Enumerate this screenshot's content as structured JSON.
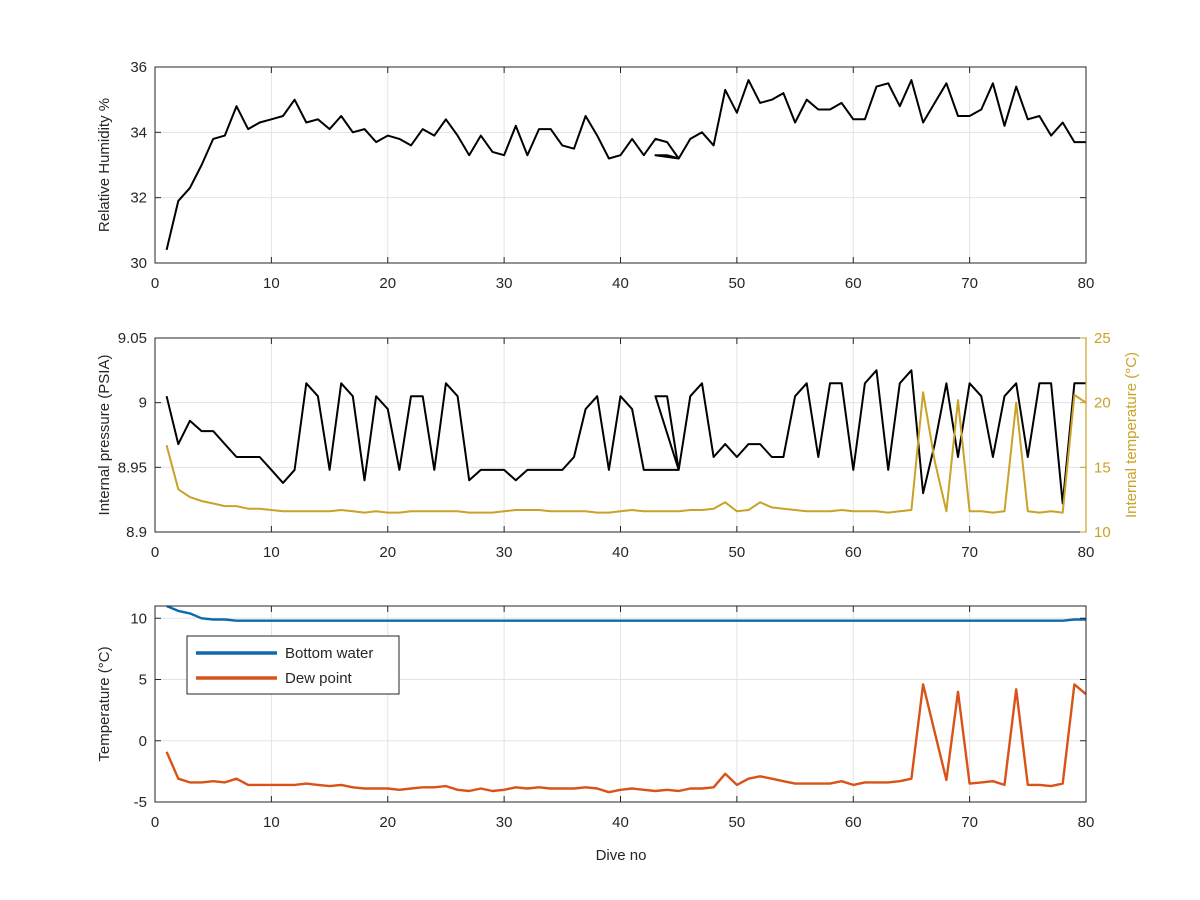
{
  "figure": {
    "xlabel": "Dive no"
  },
  "chart_data": [
    {
      "type": "line",
      "ylabel": "Relative Humidity %",
      "xlim": [
        0,
        80
      ],
      "ylim": [
        30,
        36
      ],
      "xticks": [
        "0",
        "10",
        "20",
        "30",
        "40",
        "50",
        "60",
        "70",
        "80"
      ],
      "yticks": [
        "30",
        "32",
        "34",
        "36"
      ],
      "grid": true,
      "series": [
        {
          "color": "#000000",
          "x": [
            1,
            2,
            3,
            4,
            5,
            6,
            7,
            8,
            9,
            10,
            11,
            12,
            13,
            14,
            15,
            16,
            17,
            18,
            19,
            20,
            21,
            22,
            23,
            24,
            25,
            26,
            27,
            28,
            29,
            30,
            31,
            32,
            33,
            34,
            35,
            36,
            37,
            38,
            39,
            40,
            41,
            42,
            43,
            44,
            45,
            43,
            44,
            45,
            46,
            47,
            48,
            49,
            50,
            51,
            52,
            53,
            54,
            55,
            56,
            57,
            58,
            59,
            60,
            61,
            62,
            63,
            64,
            65,
            66,
            67,
            68,
            69,
            70,
            71,
            72,
            73,
            74,
            75,
            76,
            77,
            78,
            79,
            80
          ],
          "y": [
            30.4,
            31.9,
            32.3,
            33.0,
            33.8,
            33.9,
            34.8,
            34.1,
            34.3,
            34.4,
            34.5,
            35.0,
            34.3,
            34.4,
            34.1,
            34.5,
            34.0,
            34.1,
            33.7,
            33.9,
            33.8,
            33.6,
            34.1,
            33.9,
            34.4,
            33.9,
            33.3,
            33.9,
            33.4,
            33.3,
            34.2,
            33.3,
            34.1,
            34.1,
            33.6,
            33.5,
            34.5,
            33.9,
            33.2,
            33.3,
            33.8,
            33.3,
            33.8,
            33.7,
            33.2,
            33.3,
            33.3,
            33.2,
            33.8,
            34.0,
            33.6,
            35.3,
            34.6,
            35.6,
            34.9,
            35.0,
            35.2,
            34.3,
            35.0,
            34.7,
            34.7,
            34.9,
            34.4,
            34.4,
            35.4,
            35.5,
            34.8,
            35.6,
            34.3,
            34.9,
            35.5,
            34.5,
            34.5,
            34.7,
            35.5,
            34.2,
            35.4,
            34.4,
            34.5,
            33.9,
            34.3,
            33.7,
            33.7
          ]
        }
      ]
    },
    {
      "type": "line",
      "ylabel": "Internal pressure (PSIA)",
      "ylabel_right": "Internal temperature (°C)",
      "xlim": [
        0,
        80
      ],
      "ylim": [
        8.9,
        9.05
      ],
      "ylim_right": [
        10,
        25
      ],
      "xticks": [
        "0",
        "10",
        "20",
        "30",
        "40",
        "50",
        "60",
        "70",
        "80"
      ],
      "yticks": [
        "8.9",
        "8.95",
        "9",
        "9.05"
      ],
      "yticks_right": [
        "10",
        "15",
        "20",
        "25"
      ],
      "grid": true,
      "series": [
        {
          "axis": "left",
          "color": "#000000",
          "x": [
            1,
            2,
            3,
            4,
            5,
            6,
            7,
            8,
            9,
            10,
            11,
            12,
            13,
            14,
            15,
            16,
            17,
            18,
            19,
            20,
            21,
            22,
            23,
            24,
            25,
            26,
            27,
            28,
            29,
            30,
            31,
            32,
            33,
            34,
            35,
            36,
            37,
            38,
            39,
            40,
            41,
            42,
            43,
            44,
            45,
            43,
            44,
            45,
            46,
            47,
            48,
            49,
            50,
            51,
            52,
            53,
            54,
            55,
            56,
            57,
            58,
            59,
            60,
            61,
            62,
            63,
            64,
            65,
            66,
            67,
            68,
            69,
            70,
            71,
            72,
            73,
            74,
            75,
            76,
            77,
            78,
            79,
            80
          ],
          "y": [
            9.005,
            8.968,
            8.986,
            8.978,
            8.978,
            8.968,
            8.958,
            8.958,
            8.958,
            8.948,
            8.938,
            8.948,
            9.015,
            9.005,
            8.948,
            9.015,
            9.005,
            8.94,
            9.005,
            8.995,
            8.948,
            9.005,
            9.005,
            8.948,
            9.015,
            9.005,
            8.94,
            8.948,
            8.948,
            8.948,
            8.94,
            8.948,
            8.948,
            8.948,
            8.948,
            8.958,
            8.995,
            9.005,
            8.948,
            9.005,
            8.995,
            8.948,
            8.948,
            8.948,
            8.948,
            9.005,
            9.005,
            8.948,
            9.005,
            9.015,
            8.958,
            8.968,
            8.958,
            8.968,
            8.968,
            8.958,
            8.958,
            9.005,
            9.015,
            8.958,
            9.015,
            9.015,
            8.948,
            9.015,
            9.025,
            8.948,
            9.015,
            9.025,
            8.93,
            8.968,
            9.015,
            8.958,
            9.015,
            9.005,
            8.958,
            9.005,
            9.015,
            8.958,
            9.015,
            9.015,
            8.922,
            9.015,
            9.015
          ]
        },
        {
          "axis": "right",
          "color": "#c9a227",
          "x": [
            1,
            2,
            3,
            4,
            5,
            6,
            7,
            8,
            9,
            10,
            11,
            12,
            13,
            14,
            15,
            16,
            17,
            18,
            19,
            20,
            21,
            22,
            23,
            24,
            25,
            26,
            27,
            28,
            29,
            30,
            31,
            32,
            33,
            34,
            35,
            36,
            37,
            38,
            39,
            40,
            41,
            42,
            43,
            44,
            45,
            46,
            47,
            48,
            49,
            50,
            51,
            52,
            53,
            54,
            55,
            56,
            57,
            58,
            59,
            60,
            61,
            62,
            63,
            64,
            65,
            66,
            67,
            68,
            69,
            70,
            71,
            72,
            73,
            74,
            75,
            76,
            77,
            78,
            79,
            80
          ],
          "y": [
            16.7,
            13.3,
            12.7,
            12.4,
            12.2,
            12.0,
            12.0,
            11.8,
            11.8,
            11.7,
            11.6,
            11.6,
            11.6,
            11.6,
            11.6,
            11.7,
            11.6,
            11.5,
            11.6,
            11.5,
            11.5,
            11.6,
            11.6,
            11.6,
            11.6,
            11.6,
            11.5,
            11.5,
            11.5,
            11.6,
            11.7,
            11.7,
            11.7,
            11.6,
            11.6,
            11.6,
            11.6,
            11.5,
            11.5,
            11.6,
            11.7,
            11.6,
            11.6,
            11.6,
            11.6,
            11.7,
            11.7,
            11.8,
            12.3,
            11.6,
            11.7,
            12.3,
            11.9,
            11.8,
            11.7,
            11.6,
            11.6,
            11.6,
            11.7,
            11.6,
            11.6,
            11.6,
            11.5,
            11.6,
            11.7,
            20.8,
            15.5,
            11.6,
            20.2,
            11.6,
            11.6,
            11.5,
            11.6,
            20.0,
            11.6,
            11.5,
            11.6,
            11.5,
            20.6,
            20.0
          ]
        }
      ]
    },
    {
      "type": "line",
      "ylabel": "Temperature (°C)",
      "xlabel": "Dive no",
      "xlim": [
        0,
        80
      ],
      "ylim": [
        -5,
        11
      ],
      "xticks": [
        "0",
        "10",
        "20",
        "30",
        "40",
        "50",
        "60",
        "70",
        "80"
      ],
      "yticks": [
        "-5",
        "0",
        "5",
        "10"
      ],
      "grid": true,
      "legend": "top-left",
      "series": [
        {
          "name": "Bottom water",
          "color": "#0f6aab",
          "x": [
            1,
            2,
            3,
            4,
            5,
            6,
            7,
            8,
            9,
            10,
            11,
            12,
            13,
            14,
            15,
            16,
            17,
            18,
            19,
            20,
            21,
            22,
            23,
            24,
            25,
            26,
            27,
            28,
            29,
            30,
            31,
            32,
            33,
            34,
            35,
            36,
            37,
            38,
            39,
            40,
            41,
            42,
            43,
            44,
            45,
            46,
            47,
            48,
            49,
            50,
            51,
            52,
            53,
            54,
            55,
            56,
            57,
            58,
            59,
            60,
            61,
            62,
            63,
            64,
            65,
            66,
            67,
            68,
            69,
            70,
            71,
            72,
            73,
            74,
            75,
            76,
            77,
            78,
            79,
            80
          ],
          "y": [
            11.0,
            10.6,
            10.4,
            10.0,
            9.9,
            9.9,
            9.8,
            9.8,
            9.8,
            9.8,
            9.8,
            9.8,
            9.8,
            9.8,
            9.8,
            9.8,
            9.8,
            9.8,
            9.8,
            9.8,
            9.8,
            9.8,
            9.8,
            9.8,
            9.8,
            9.8,
            9.8,
            9.8,
            9.8,
            9.8,
            9.8,
            9.8,
            9.8,
            9.8,
            9.8,
            9.8,
            9.8,
            9.8,
            9.8,
            9.8,
            9.8,
            9.8,
            9.8,
            9.8,
            9.8,
            9.8,
            9.8,
            9.8,
            9.8,
            9.8,
            9.8,
            9.8,
            9.8,
            9.8,
            9.8,
            9.8,
            9.8,
            9.8,
            9.8,
            9.8,
            9.8,
            9.8,
            9.8,
            9.8,
            9.8,
            9.8,
            9.8,
            9.8,
            9.8,
            9.8,
            9.8,
            9.8,
            9.8,
            9.8,
            9.8,
            9.8,
            9.8,
            9.8,
            9.9,
            9.9
          ]
        },
        {
          "name": "Dew point",
          "color": "#d95319",
          "x": [
            1,
            2,
            3,
            4,
            5,
            6,
            7,
            8,
            9,
            10,
            11,
            12,
            13,
            14,
            15,
            16,
            17,
            18,
            19,
            20,
            21,
            22,
            23,
            24,
            25,
            26,
            27,
            28,
            29,
            30,
            31,
            32,
            33,
            34,
            35,
            36,
            37,
            38,
            39,
            40,
            41,
            42,
            43,
            44,
            45,
            46,
            47,
            48,
            49,
            50,
            51,
            52,
            53,
            54,
            55,
            56,
            57,
            58,
            59,
            60,
            61,
            62,
            63,
            64,
            65,
            66,
            67,
            68,
            69,
            70,
            71,
            72,
            73,
            74,
            75,
            76,
            77,
            78,
            79,
            80
          ],
          "y": [
            -0.9,
            -3.1,
            -3.4,
            -3.4,
            -3.3,
            -3.4,
            -3.1,
            -3.6,
            -3.6,
            -3.6,
            -3.6,
            -3.6,
            -3.5,
            -3.6,
            -3.7,
            -3.6,
            -3.8,
            -3.9,
            -3.9,
            -3.9,
            -4.0,
            -3.9,
            -3.8,
            -3.8,
            -3.7,
            -4.0,
            -4.1,
            -3.9,
            -4.1,
            -4.0,
            -3.8,
            -3.9,
            -3.8,
            -3.9,
            -3.9,
            -3.9,
            -3.8,
            -3.9,
            -4.2,
            -4.0,
            -3.9,
            -4.0,
            -4.1,
            -4.0,
            -4.1,
            -3.9,
            -3.9,
            -3.8,
            -2.7,
            -3.6,
            -3.1,
            -2.9,
            -3.1,
            -3.3,
            -3.5,
            -3.5,
            -3.5,
            -3.5,
            -3.3,
            -3.6,
            -3.4,
            -3.4,
            -3.4,
            -3.3,
            -3.1,
            4.6,
            0.7,
            -3.2,
            4.0,
            -3.5,
            -3.4,
            -3.3,
            -3.6,
            4.2,
            -3.6,
            -3.6,
            -3.7,
            -3.5,
            4.6,
            3.8
          ]
        }
      ]
    }
  ]
}
